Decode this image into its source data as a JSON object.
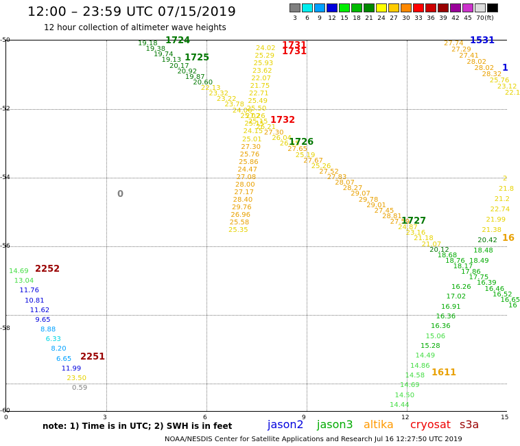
{
  "title": "12:00 – 23:59 UTC 07/15/2019",
  "subtitle": "12 hour collection of altimeter wave heights",
  "legend": {
    "unit": "(ft)",
    "items": [
      {
        "label": "3",
        "color": "#808080"
      },
      {
        "label": "6",
        "color": "#00eeee"
      },
      {
        "label": "9",
        "color": "#00a0ff"
      },
      {
        "label": "12",
        "color": "#0000dd"
      },
      {
        "label": "15",
        "color": "#00ee00"
      },
      {
        "label": "18",
        "color": "#00bb00"
      },
      {
        "label": "21",
        "color": "#008800"
      },
      {
        "label": "24",
        "color": "#ffff00"
      },
      {
        "label": "27",
        "color": "#ffcc00"
      },
      {
        "label": "30",
        "color": "#ff8800"
      },
      {
        "label": "33",
        "color": "#ff0000"
      },
      {
        "label": "36",
        "color": "#cc0000"
      },
      {
        "label": "39",
        "color": "#990000"
      },
      {
        "label": "42",
        "color": "#990099"
      },
      {
        "label": "45",
        "color": "#cc33cc"
      },
      {
        "label": "70",
        "color": "#dddddd"
      },
      {
        "label": "",
        "color": "#000000"
      }
    ]
  },
  "axes": {
    "y_ticks": [
      "-50",
      "-52",
      "-54",
      "-56",
      "-58",
      "-60"
    ],
    "x_ticks": [
      "0",
      "3",
      "6",
      "9",
      "12",
      "15"
    ]
  },
  "colors": {
    "grey": "#808080",
    "cyan": "#00d5e5",
    "lightblue": "#00a0ff",
    "blue": "#0000dd",
    "lightgreen": "#44dd44",
    "green": "#00aa00",
    "darkgreen": "#007700",
    "yellow": "#e6d200",
    "orange": "#e8a000",
    "red": "#ee0000",
    "darkred": "#990000"
  },
  "sat_labels": [
    {
      "text": "1724",
      "c": "darkgreen"
    },
    {
      "text": "1725",
      "c": "darkgreen"
    },
    {
      "text": "1731",
      "c": "red"
    },
    {
      "text": "1731",
      "c": "red"
    },
    {
      "text": "1531",
      "c": "blue"
    },
    {
      "text": "1",
      "c": "blue"
    },
    {
      "text": "1732",
      "c": "red"
    },
    {
      "text": "1726",
      "c": "darkgreen"
    },
    {
      "text": "1727",
      "c": "darkgreen"
    },
    {
      "text": "16",
      "c": "orange"
    },
    {
      "text": "2252",
      "c": "darkred"
    },
    {
      "text": "2251",
      "c": "darkred"
    },
    {
      "text": "1611",
      "c": "orange"
    },
    {
      "text": "0",
      "c": "grey"
    }
  ],
  "tracks": [
    {
      "id": "jason3-1724",
      "values": [
        {
          "v": "19.18",
          "c": "darkgreen"
        },
        {
          "v": "19.38",
          "c": "darkgreen"
        },
        {
          "v": "19.74",
          "c": "darkgreen"
        },
        {
          "v": "19.13",
          "c": "darkgreen"
        },
        {
          "v": "20.17",
          "c": "darkgreen"
        },
        {
          "v": "20.92",
          "c": "darkgreen"
        },
        {
          "v": "19.87",
          "c": "darkgreen"
        },
        {
          "v": "20.60",
          "c": "darkgreen"
        },
        {
          "v": "22.13",
          "c": "yellow"
        },
        {
          "v": "23.32",
          "c": "yellow"
        },
        {
          "v": "23.22",
          "c": "yellow"
        },
        {
          "v": "23.78",
          "c": "yellow"
        },
        {
          "v": "24.06",
          "c": "yellow"
        },
        {
          "v": "25.02",
          "c": "yellow"
        },
        {
          "v": "25.15",
          "c": "yellow"
        },
        {
          "v": "26.21",
          "c": "yellow"
        },
        {
          "v": "27.30",
          "c": "orange"
        },
        {
          "v": "26.04",
          "c": "yellow"
        },
        {
          "v": "26.15",
          "c": "yellow"
        },
        {
          "v": "27.65",
          "c": "orange"
        },
        {
          "v": "25.19",
          "c": "yellow"
        },
        {
          "v": "27.67",
          "c": "orange"
        },
        {
          "v": "25.26",
          "c": "yellow"
        },
        {
          "v": "27.52",
          "c": "orange"
        },
        {
          "v": "27.83",
          "c": "orange"
        },
        {
          "v": "28.07",
          "c": "orange"
        },
        {
          "v": "28.27",
          "c": "orange"
        },
        {
          "v": "29.07",
          "c": "orange"
        },
        {
          "v": "29.78",
          "c": "orange"
        },
        {
          "v": "29.01",
          "c": "orange"
        },
        {
          "v": "27.45",
          "c": "orange"
        },
        {
          "v": "28.81",
          "c": "orange"
        },
        {
          "v": "27.59",
          "c": "orange"
        },
        {
          "v": "24.87",
          "c": "yellow"
        },
        {
          "v": "23.16",
          "c": "yellow"
        },
        {
          "v": "21.18",
          "c": "yellow"
        },
        {
          "v": "21.07",
          "c": "yellow"
        },
        {
          "v": "20.12",
          "c": "darkgreen"
        },
        {
          "v": "18.68",
          "c": "green"
        },
        {
          "v": "18.76",
          "c": "green"
        },
        {
          "v": "18.17",
          "c": "green"
        },
        {
          "v": "17.86",
          "c": "green"
        },
        {
          "v": "17.75",
          "c": "green"
        },
        {
          "v": "16.39",
          "c": "green"
        },
        {
          "v": "16.46",
          "c": "green"
        },
        {
          "v": "16.52",
          "c": "green"
        },
        {
          "v": "16.65",
          "c": "green"
        },
        {
          "v": "16",
          "c": "green"
        }
      ]
    },
    {
      "id": "altika-1731",
      "values": [
        {
          "v": "24.02",
          "c": "yellow"
        },
        {
          "v": "25.29",
          "c": "yellow"
        },
        {
          "v": "25.93",
          "c": "yellow"
        },
        {
          "v": "23.62",
          "c": "yellow"
        },
        {
          "v": "22.07",
          "c": "yellow"
        },
        {
          "v": "21.75",
          "c": "yellow"
        },
        {
          "v": "22.71",
          "c": "yellow"
        },
        {
          "v": "25.49",
          "c": "yellow"
        },
        {
          "v": "25.50",
          "c": "yellow"
        },
        {
          "v": "27.26",
          "c": "yellow"
        },
        {
          "v": "25.15",
          "c": "yellow"
        },
        {
          "v": "24.15",
          "c": "yellow"
        },
        {
          "v": "25.01",
          "c": "yellow"
        },
        {
          "v": "27.30",
          "c": "orange"
        },
        {
          "v": "25.76",
          "c": "orange"
        },
        {
          "v": "25.86",
          "c": "orange"
        },
        {
          "v": "24.47",
          "c": "orange"
        },
        {
          "v": "27.08",
          "c": "orange"
        },
        {
          "v": "28.00",
          "c": "orange"
        },
        {
          "v": "27.17",
          "c": "orange"
        },
        {
          "v": "28.40",
          "c": "orange"
        },
        {
          "v": "29.76",
          "c": "orange"
        },
        {
          "v": "26.96",
          "c": "orange"
        },
        {
          "v": "25.58",
          "c": "orange"
        },
        {
          "v": "25.35",
          "c": "yellow"
        }
      ]
    },
    {
      "id": "altika-1531",
      "values": [
        {
          "v": "27.74",
          "c": "orange"
        },
        {
          "v": "27.29",
          "c": "orange"
        },
        {
          "v": "27.41",
          "c": "orange"
        },
        {
          "v": "28.02",
          "c": "orange"
        },
        {
          "v": "28.02",
          "c": "orange"
        },
        {
          "v": "28.32",
          "c": "orange"
        },
        {
          "v": "25.76",
          "c": "yellow"
        },
        {
          "v": "23.12",
          "c": "yellow"
        },
        {
          "v": "22.1",
          "c": "yellow"
        }
      ]
    },
    {
      "id": "yellow-right",
      "values": [
        {
          "v": "2",
          "c": "yellow"
        },
        {
          "v": "21.8",
          "c": "yellow"
        },
        {
          "v": "21.2",
          "c": "yellow"
        },
        {
          "v": "22.74",
          "c": "yellow"
        },
        {
          "v": "21.99",
          "c": "yellow"
        },
        {
          "v": "21.38",
          "c": "yellow"
        },
        {
          "v": "20.42",
          "c": "darkgreen"
        },
        {
          "v": "18.48",
          "c": "green"
        },
        {
          "v": "18.49",
          "c": "green"
        }
      ]
    },
    {
      "id": "jason3-1611",
      "values": [
        {
          "v": "16.26",
          "c": "green"
        },
        {
          "v": "17.02",
          "c": "green"
        },
        {
          "v": "16.91",
          "c": "green"
        },
        {
          "v": "16.36",
          "c": "green"
        },
        {
          "v": "16.36",
          "c": "green"
        },
        {
          "v": "15.06",
          "c": "lightgreen"
        },
        {
          "v": "15.28",
          "c": "green"
        },
        {
          "v": "14.49",
          "c": "lightgreen"
        },
        {
          "v": "14.86",
          "c": "lightgreen"
        },
        {
          "v": "14.58",
          "c": "lightgreen"
        },
        {
          "v": "14.69",
          "c": "lightgreen"
        },
        {
          "v": "14.50",
          "c": "lightgreen"
        },
        {
          "v": "14.44",
          "c": "lightgreen"
        }
      ]
    },
    {
      "id": "cryosat-2252",
      "values": [
        {
          "v": "14.69",
          "c": "lightgreen"
        },
        {
          "v": "13.04",
          "c": "lightgreen"
        },
        {
          "v": "11.76",
          "c": "blue"
        },
        {
          "v": "10.81",
          "c": "blue"
        },
        {
          "v": "11.62",
          "c": "blue"
        },
        {
          "v": "9.65",
          "c": "blue"
        },
        {
          "v": "8.88",
          "c": "lightblue"
        },
        {
          "v": "6.33",
          "c": "cyan"
        },
        {
          "v": "8.20",
          "c": "lightblue"
        },
        {
          "v": "6.65",
          "c": "lightblue"
        },
        {
          "v": "11.99",
          "c": "blue"
        },
        {
          "v": "23.50",
          "c": "yellow"
        },
        {
          "v": "0.59",
          "c": "grey"
        }
      ]
    }
  ],
  "note": "note: 1) Time is in UTC; 2) SWH is in feet",
  "missions": [
    {
      "name": "jason2",
      "color": "#0000dd"
    },
    {
      "name": "jason3",
      "color": "#00aa00"
    },
    {
      "name": "altika",
      "color": "#ff9900"
    },
    {
      "name": "cryosat",
      "color": "#ee0000"
    },
    {
      "name": "s3a",
      "color": "#990000"
    }
  ],
  "footer": "NOAA/NESDIS Center for Satellite Applications and Research   Jul 16 12:27:50 UTC 2019"
}
